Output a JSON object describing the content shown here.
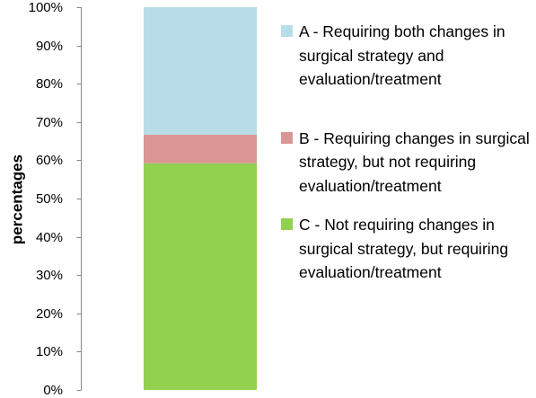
{
  "chart_data": {
    "type": "bar",
    "stacked": true,
    "categories": [
      ""
    ],
    "ylabel": "percentages",
    "xlabel": "",
    "ylim": [
      0,
      100
    ],
    "y_tick_labels": [
      "0%",
      "10%",
      "20%",
      "30%",
      "40%",
      "50%",
      "60%",
      "70%",
      "80%",
      "90%",
      "100%"
    ],
    "grid": false,
    "legend_position": "right",
    "series": [
      {
        "name": "C - Not requiring changes in surgical strategy, but requiring evaluation/treatment",
        "values": [
          59.2
        ],
        "color": "#92d050"
      },
      {
        "name": "B - Requiring changes in surgical strategy, but not requiring evaluation/treatment",
        "values": [
          7.5
        ],
        "color": "#d99694"
      },
      {
        "name": "A - Requiring both changes in surgical strategy and evaluation/treatment",
        "values": [
          33.3
        ],
        "color": "#b7dee8"
      }
    ]
  },
  "legend": {
    "items": [
      {
        "label": "A - Requiring both changes in surgical strategy and evaluation/treatment",
        "color": "#b7dee8"
      },
      {
        "label": "B - Requiring changes in surgical strategy, but not requiring evaluation/treatment",
        "color": "#d99694"
      },
      {
        "label": "C - Not requiring changes in surgical strategy, but requiring evaluation/treatment",
        "color": "#92d050"
      }
    ]
  },
  "colors": {
    "axis": "#868686"
  }
}
